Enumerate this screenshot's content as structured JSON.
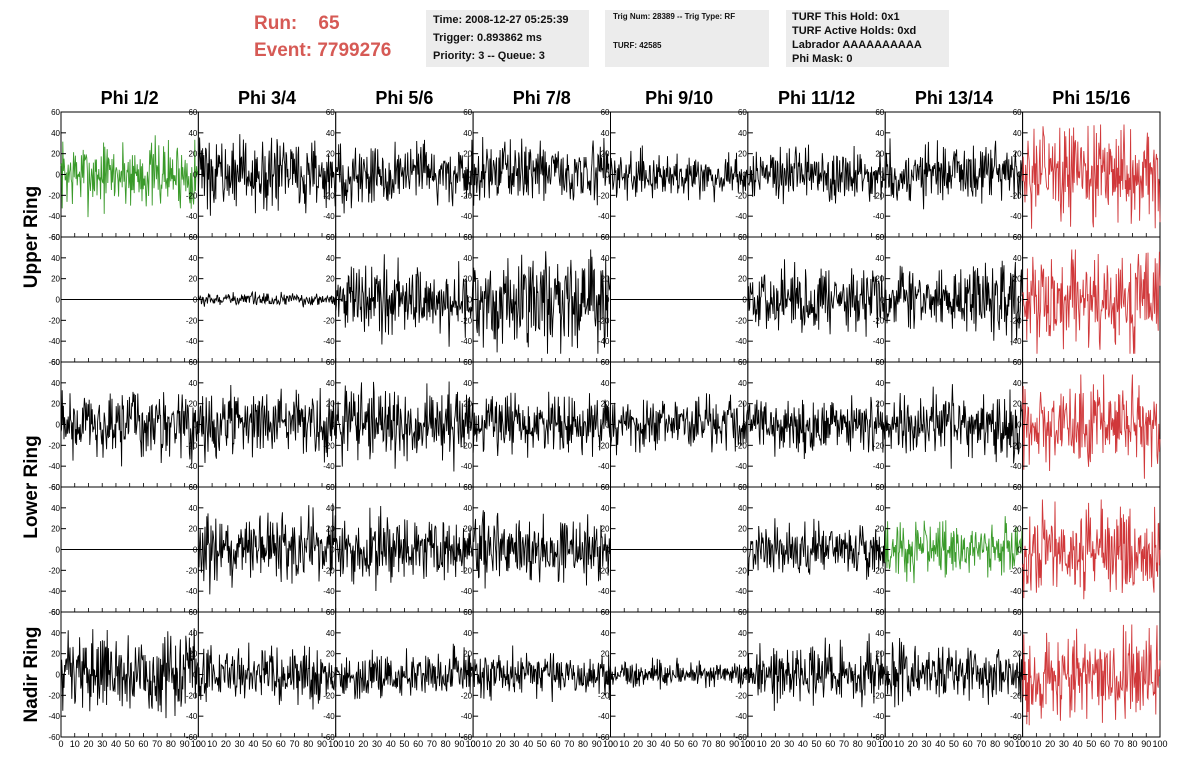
{
  "header": {
    "run_label": "Run:",
    "run_value": "65",
    "event_label": "Event:",
    "event_value": "7799276",
    "time": "Time: 2008-12-27 05:25:39",
    "trigger": "Trigger: 0.893862 ms",
    "priority": "Priority: 3 -- Queue: 3",
    "trig_num": "Trig Num: 28389 -- Trig Type: RF",
    "turf": "TURF: 42585",
    "turf_this_hold": "TURF This Hold: 0x1",
    "turf_active_holds": "TURF Active Holds: 0xd",
    "labrador": "Labrador AAAAAAAAAA",
    "phi_mask": "Phi Mask: 0"
  },
  "chart_data": {
    "type": "line",
    "columns": [
      "Phi 1/2",
      "Phi 3/4",
      "Phi 5/6",
      "Phi 7/8",
      "Phi 9/10",
      "Phi 11/12",
      "Phi 13/14",
      "Phi 15/16"
    ],
    "rows": [
      "Upper Ring",
      "Upper Ring",
      "Lower Ring",
      "Lower Ring",
      "Nadir Ring"
    ],
    "row_labels": [
      {
        "label": "Upper Ring",
        "spans_panel_rows": [
          0,
          1
        ]
      },
      {
        "label": "Lower Ring",
        "spans_panel_rows": [
          2,
          3
        ]
      },
      {
        "label": "Nadir Ring",
        "spans_panel_rows": [
          4
        ]
      }
    ],
    "xlim": [
      0,
      100
    ],
    "ylim": [
      -60,
      60
    ],
    "x_ticks": [
      "0",
      "10",
      "20",
      "30",
      "40",
      "50",
      "60",
      "70",
      "80",
      "90",
      "100"
    ],
    "y_ticks": [
      "-60",
      "-40",
      "-20",
      "0",
      "20",
      "40",
      "60"
    ],
    "colors": {
      "normal": "#000000",
      "triggered": "#3a9a2a",
      "masked": "#d0383a"
    },
    "panels": [
      [
        {
          "state": "triggered",
          "amp": 16
        },
        {
          "state": "normal",
          "amp": 16
        },
        {
          "state": "normal",
          "amp": 15
        },
        {
          "state": "normal",
          "amp": 14
        },
        {
          "state": "normal",
          "amp": 10
        },
        {
          "state": "normal",
          "amp": 13
        },
        {
          "state": "normal",
          "amp": 14
        },
        {
          "state": "masked",
          "amp": 22
        }
      ],
      [
        {
          "state": "flat",
          "amp": 0
        },
        {
          "state": "normal",
          "amp": 3
        },
        {
          "state": "normal",
          "amp": 17
        },
        {
          "state": "normal",
          "amp": 22
        },
        {
          "state": "flat",
          "amp": 0
        },
        {
          "state": "normal",
          "amp": 15
        },
        {
          "state": "normal",
          "amp": 16
        },
        {
          "state": "masked",
          "amp": 22
        }
      ],
      [
        {
          "state": "normal",
          "amp": 16
        },
        {
          "state": "normal",
          "amp": 15
        },
        {
          "state": "normal",
          "amp": 17
        },
        {
          "state": "normal",
          "amp": 14
        },
        {
          "state": "normal",
          "amp": 13
        },
        {
          "state": "normal",
          "amp": 13
        },
        {
          "state": "normal",
          "amp": 15
        },
        {
          "state": "masked",
          "amp": 20
        }
      ],
      [
        {
          "state": "flat",
          "amp": 0
        },
        {
          "state": "normal",
          "amp": 17
        },
        {
          "state": "normal",
          "amp": 15
        },
        {
          "state": "normal",
          "amp": 16
        },
        {
          "state": "flat",
          "amp": 0
        },
        {
          "state": "normal",
          "amp": 12
        },
        {
          "state": "triggered",
          "amp": 13
        },
        {
          "state": "masked",
          "amp": 22
        }
      ],
      [
        {
          "state": "normal",
          "amp": 18
        },
        {
          "state": "normal",
          "amp": 13
        },
        {
          "state": "normal",
          "amp": 11
        },
        {
          "state": "normal",
          "amp": 11
        },
        {
          "state": "normal",
          "amp": 6
        },
        {
          "state": "normal",
          "amp": 14
        },
        {
          "state": "normal",
          "amp": 13
        },
        {
          "state": "masked",
          "amp": 20
        }
      ]
    ]
  }
}
